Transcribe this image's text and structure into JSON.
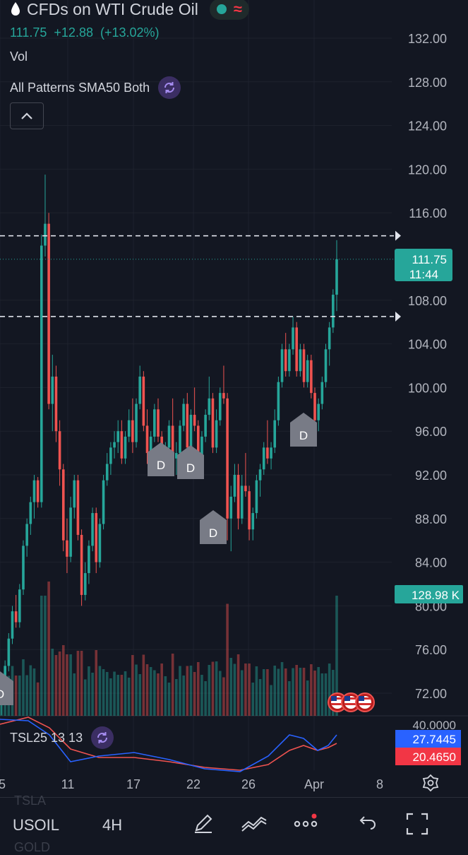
{
  "header": {
    "symbol_title": "CFDs on WTI Crude Oil",
    "last_price": "111.75",
    "change": "+12.88",
    "change_pct": "(+13.02%)",
    "volume_label": "Vol",
    "indicator_label": "All Patterns SMA50 Both",
    "oscillator_label": "TSL25 13 13"
  },
  "colors": {
    "up": "#26a69a",
    "down": "#ef5350",
    "bg": "#131722",
    "grid": "#1e222d",
    "purple": "#7e57c2"
  },
  "price_axis": {
    "labels": [
      "132.00",
      "128.00",
      "124.00",
      "120.00",
      "116.00",
      "108.00",
      "104.00",
      "100.00",
      "96.00",
      "92.00",
      "88.00",
      "84.00",
      "80.00",
      "76.00",
      "72.00"
    ]
  },
  "tags": {
    "current_price": "111.75",
    "countdown": "11:44",
    "volume": "128.98 K",
    "osc_top": "40.0000",
    "osc_blue": "27.7445",
    "osc_red": "20.4650"
  },
  "time_axis": {
    "labels": [
      "5",
      "11",
      "17",
      "22",
      "26",
      "Apr",
      "8"
    ]
  },
  "patterns": {
    "label": "D"
  },
  "toolbar": {
    "symbol": "USOIL",
    "interval": "4H"
  },
  "ghost_text": {
    "top": "TSLA",
    "bottom": "GOLD"
  },
  "chart_data": {
    "type": "candlestick",
    "symbol": "USOIL",
    "interval": "4H",
    "ylim": [
      70,
      134
    ],
    "x_ticks": [
      "5",
      "11",
      "17",
      "22",
      "26",
      "Apr",
      "8"
    ],
    "horizontal_levels": [
      113.9,
      106.5
    ],
    "last_price": 111.75,
    "pattern_markers": [
      {
        "label": "D",
        "date": "20",
        "price": 92.5
      },
      {
        "label": "D",
        "date": "22",
        "price": 92.3
      },
      {
        "label": "D",
        "date": "24",
        "price": 86.7
      },
      {
        "label": "D",
        "date": "Mar 31",
        "price": 96.3
      }
    ],
    "candles_ohlc": [
      [
        72,
        73,
        70,
        72.5
      ],
      [
        72.5,
        75,
        72,
        74.5
      ],
      [
        74.5,
        77.5,
        74,
        77
      ],
      [
        77,
        80,
        76.5,
        79.5
      ],
      [
        79.5,
        81,
        78,
        78.5
      ],
      [
        78.5,
        82,
        78,
        81.5
      ],
      [
        81.5,
        86,
        81,
        85.5
      ],
      [
        85.5,
        88,
        84.5,
        87.5
      ],
      [
        87.5,
        90,
        86.5,
        89.5
      ],
      [
        89.5,
        92,
        88,
        91.5
      ],
      [
        91.5,
        91.8,
        89,
        89.5
      ],
      [
        89.5,
        114,
        89,
        113
      ],
      [
        113,
        119.5,
        112,
        115
      ],
      [
        115,
        116,
        98,
        98.5
      ],
      [
        98.5,
        103,
        96,
        101
      ],
      [
        101,
        102,
        95,
        96
      ],
      [
        96,
        97,
        91,
        92.5
      ],
      [
        92.5,
        93,
        85,
        86
      ],
      [
        86,
        88,
        83,
        84.5
      ],
      [
        84.5,
        90,
        84,
        89
      ],
      [
        89,
        92,
        88,
        91.5
      ],
      [
        91.5,
        92,
        86,
        86.5
      ],
      [
        86.5,
        87,
        80,
        81
      ],
      [
        81,
        84,
        80.5,
        83
      ],
      [
        83,
        86,
        82,
        85.5
      ],
      [
        85.5,
        89,
        85,
        88.5
      ],
      [
        88.5,
        89,
        83,
        84
      ],
      [
        84,
        88,
        83.5,
        87.5
      ],
      [
        87.5,
        92,
        87,
        91.5
      ],
      [
        91.5,
        94,
        91,
        93
      ],
      [
        93,
        95,
        92,
        94.5
      ],
      [
        94.5,
        96,
        93.5,
        95
      ],
      [
        95,
        97,
        94,
        96
      ],
      [
        96,
        97,
        93,
        93.5
      ],
      [
        93.5,
        96,
        93,
        95.5
      ],
      [
        95.5,
        98,
        95,
        97
      ],
      [
        97,
        99,
        94,
        95
      ],
      [
        95,
        99,
        94.5,
        98.5
      ],
      [
        98.5,
        102,
        98,
        101
      ],
      [
        101,
        101.5,
        96,
        96.5
      ],
      [
        96.5,
        98,
        93,
        94
      ],
      [
        94,
        96,
        93,
        95.5
      ],
      [
        95.5,
        98.5,
        95,
        98
      ],
      [
        98,
        99,
        95,
        95.5
      ],
      [
        95.5,
        96,
        92,
        92.5
      ],
      [
        92.5,
        95,
        92,
        94.5
      ],
      [
        94.5,
        97,
        94,
        96.5
      ],
      [
        96.5,
        99,
        93,
        93.5
      ],
      [
        93.5,
        95,
        92,
        94
      ],
      [
        94,
        97,
        93.5,
        96.5
      ],
      [
        96.5,
        99,
        96,
        98.5
      ],
      [
        98.5,
        99.5,
        94,
        94.5
      ],
      [
        94.5,
        98,
        94,
        97.5
      ],
      [
        97.5,
        100,
        96,
        96.5
      ],
      [
        96.5,
        97,
        93,
        93.5
      ],
      [
        93.5,
        96,
        93,
        95.5
      ],
      [
        95.5,
        98,
        95,
        97.5
      ],
      [
        97.5,
        101,
        97,
        99
      ],
      [
        99,
        99.5,
        94,
        94.5
      ],
      [
        94.5,
        98,
        94,
        97
      ],
      [
        97,
        100,
        96.5,
        99.5
      ],
      [
        99.5,
        102,
        98.5,
        99
      ],
      [
        99,
        99.5,
        86,
        88
      ],
      [
        88,
        91,
        85,
        90
      ],
      [
        90,
        93,
        89.5,
        92
      ],
      [
        92,
        93,
        87,
        88
      ],
      [
        88,
        92,
        87.5,
        91
      ],
      [
        91,
        94,
        90,
        90.5
      ],
      [
        90.5,
        91,
        86,
        87
      ],
      [
        87,
        89,
        86,
        88.5
      ],
      [
        88.5,
        92,
        88,
        91.5
      ],
      [
        91.5,
        93,
        90,
        92.5
      ],
      [
        92.5,
        95,
        92,
        94.5
      ],
      [
        94.5,
        97,
        93,
        93.5
      ],
      [
        93.5,
        95,
        92.5,
        94.5
      ],
      [
        94.5,
        98,
        94,
        97
      ],
      [
        97,
        101,
        96.5,
        100.5
      ],
      [
        100.5,
        104,
        100,
        103.5
      ],
      [
        103.5,
        105,
        101,
        101.5
      ],
      [
        101.5,
        104,
        101,
        103.5
      ],
      [
        103.5,
        106.5,
        103,
        105.5
      ],
      [
        105.5,
        106,
        101,
        101.5
      ],
      [
        101.5,
        104,
        101,
        103.5
      ],
      [
        103.5,
        104,
        100,
        100.5
      ],
      [
        100.5,
        103,
        100,
        102.5
      ],
      [
        102.5,
        103,
        99,
        99.5
      ],
      [
        99.5,
        100,
        96,
        97
      ],
      [
        97,
        99,
        96,
        98.5
      ],
      [
        98.5,
        101,
        98,
        100.5
      ],
      [
        100.5,
        104,
        100,
        103.5
      ],
      [
        103.5,
        106,
        102,
        105.5
      ],
      [
        105.5,
        109,
        105,
        108.5
      ],
      [
        108.5,
        113.5,
        107,
        111.75
      ]
    ],
    "volume_last": "128.98 K",
    "oscillator": {
      "name": "TSL25 13 13",
      "blue": 27.7445,
      "red": 20.465,
      "scale_top": 40.0
    }
  }
}
